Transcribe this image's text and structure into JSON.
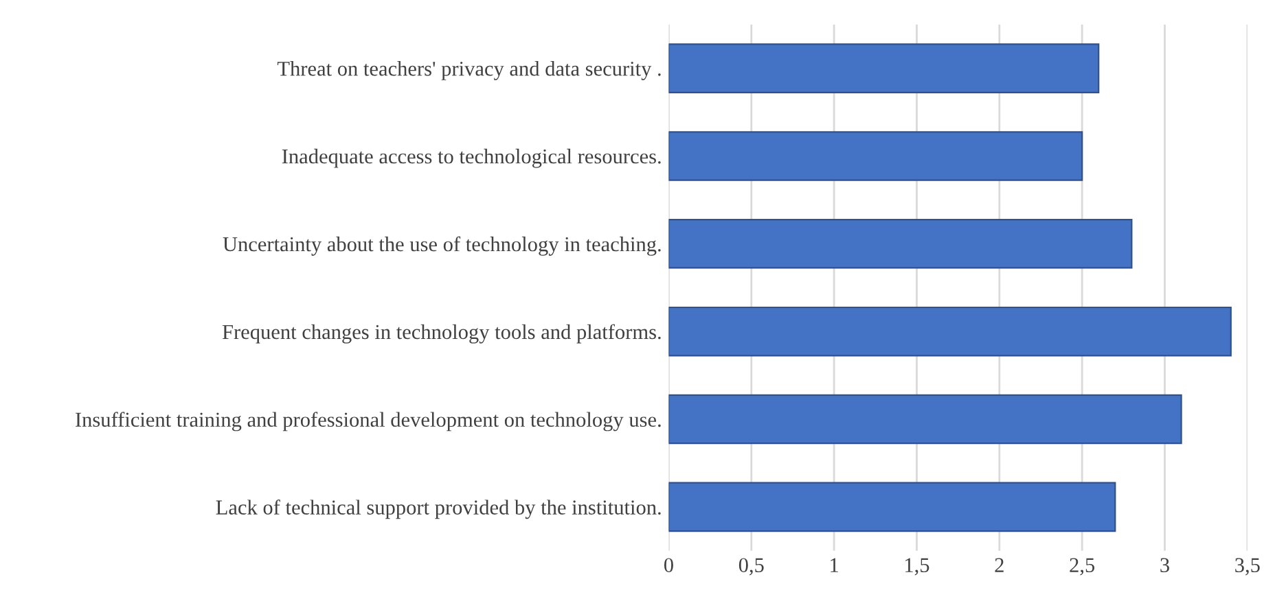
{
  "chart_data": {
    "type": "bar",
    "orientation": "horizontal",
    "categories": [
      "Threat on teachers' privacy and data security .",
      "Inadequate access to technological resources.",
      "Uncertainty about the use of technology in teaching.",
      "Frequent changes in technology tools and platforms.",
      "Insufficient training and professional development on technology use.",
      "Lack of technical support provided by the institution."
    ],
    "values": [
      2.6,
      2.5,
      2.8,
      3.4,
      3.1,
      2.7
    ],
    "color": "#4472c4",
    "xlim": [
      0,
      3.5
    ],
    "xticks": [
      0,
      {
        "value": 0.5,
        "label": "0,5"
      },
      1,
      {
        "value": 1.5,
        "label": "1,5"
      },
      2,
      {
        "value": 2.5,
        "label": "2,5"
      },
      3,
      {
        "value": 3.5,
        "label": "3,5"
      }
    ],
    "grid": "x"
  }
}
